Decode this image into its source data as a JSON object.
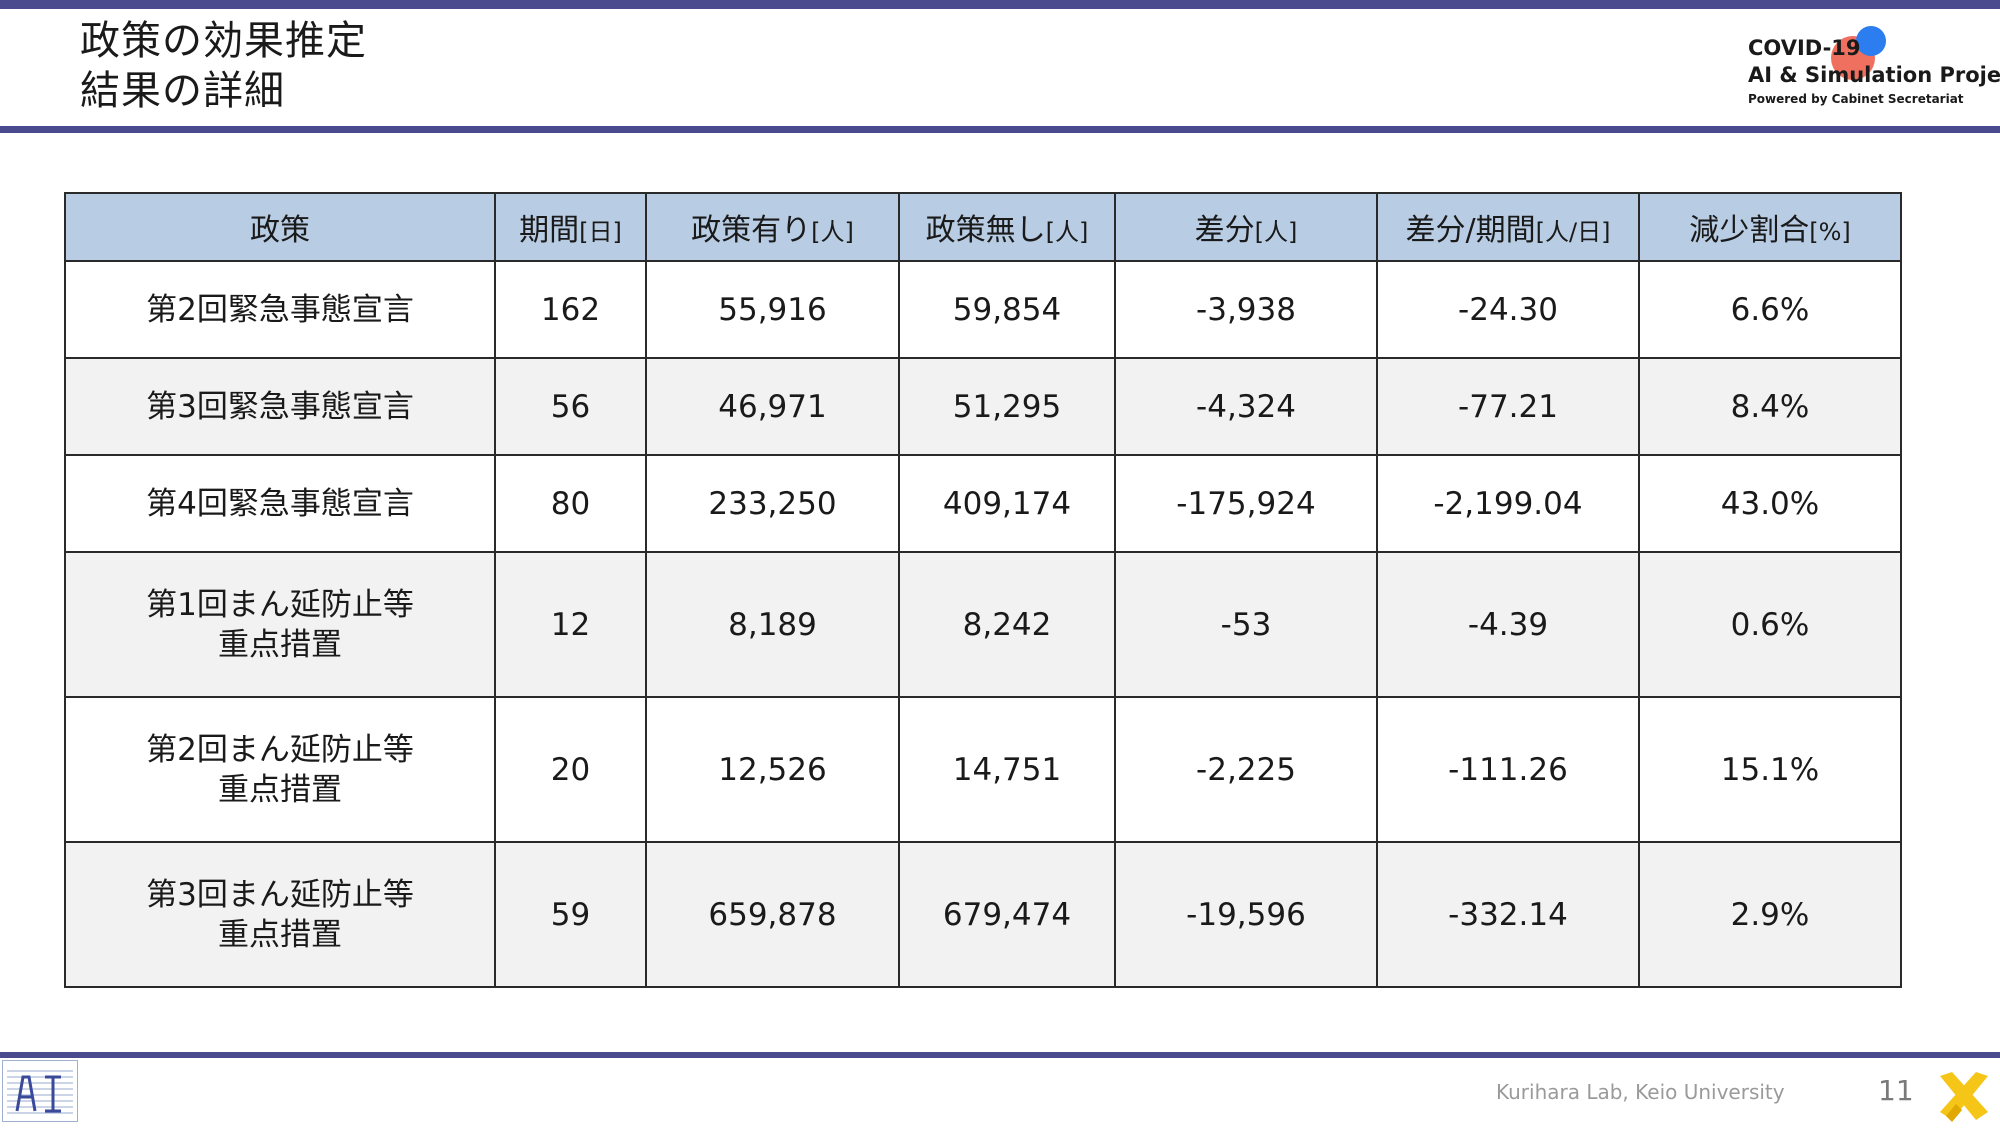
{
  "slide": {
    "title_line1": "政策の効果推定",
    "title_line2": "結果の詳細",
    "logo": {
      "line1": "COVID-19",
      "line2": "AI & Simulation Project",
      "line3": "Powered by Cabinet Secretariat"
    },
    "footer": {
      "credit": "Kurihara Lab, Keio University",
      "page_number": "11"
    },
    "colors": {
      "accent_bar": "#4a4a8e",
      "header_fill": "#b8cce4",
      "row_alt_fill": "#f2f2f2",
      "logo_red": "#f07060",
      "logo_blue": "#2c7df0",
      "x_logo": "#f5c518"
    },
    "icons": [
      "lab-logo-icon",
      "x-logo-icon"
    ]
  },
  "table": {
    "headers": [
      {
        "label": "政策",
        "unit": ""
      },
      {
        "label": "期間",
        "unit": "[日]"
      },
      {
        "label": "政策有り",
        "unit": "[人]"
      },
      {
        "label": "政策無し",
        "unit": "[人]"
      },
      {
        "label": "差分",
        "unit": "[人]"
      },
      {
        "label": "差分/期間",
        "unit": "[人/日]"
      },
      {
        "label": "減少割合",
        "unit": "[%]"
      }
    ],
    "rows": [
      {
        "policy_line1": "第2回緊急事態宣言",
        "policy_line2": "",
        "days": "162",
        "with_policy": "55,916",
        "without_policy": "59,854",
        "diff": "-3,938",
        "diff_per_day": "-24.30",
        "reduction": "6.6%"
      },
      {
        "policy_line1": "第3回緊急事態宣言",
        "policy_line2": "",
        "days": "56",
        "with_policy": "46,971",
        "without_policy": "51,295",
        "diff": "-4,324",
        "diff_per_day": "-77.21",
        "reduction": "8.4%"
      },
      {
        "policy_line1": "第4回緊急事態宣言",
        "policy_line2": "",
        "days": "80",
        "with_policy": "233,250",
        "without_policy": "409,174",
        "diff": "-175,924",
        "diff_per_day": "-2,199.04",
        "reduction": "43.0%"
      },
      {
        "policy_line1": "第1回まん延防止等",
        "policy_line2": "重点措置",
        "days": "12",
        "with_policy": "8,189",
        "without_policy": "8,242",
        "diff": "-53",
        "diff_per_day": "-4.39",
        "reduction": "0.6%"
      },
      {
        "policy_line1": "第2回まん延防止等",
        "policy_line2": "重点措置",
        "days": "20",
        "with_policy": "12,526",
        "without_policy": "14,751",
        "diff": "-2,225",
        "diff_per_day": "-111.26",
        "reduction": "15.1%"
      },
      {
        "policy_line1": "第3回まん延防止等",
        "policy_line2": "重点措置",
        "days": "59",
        "with_policy": "659,878",
        "without_policy": "679,474",
        "diff": "-19,596",
        "diff_per_day": "-332.14",
        "reduction": "2.9%"
      }
    ]
  }
}
